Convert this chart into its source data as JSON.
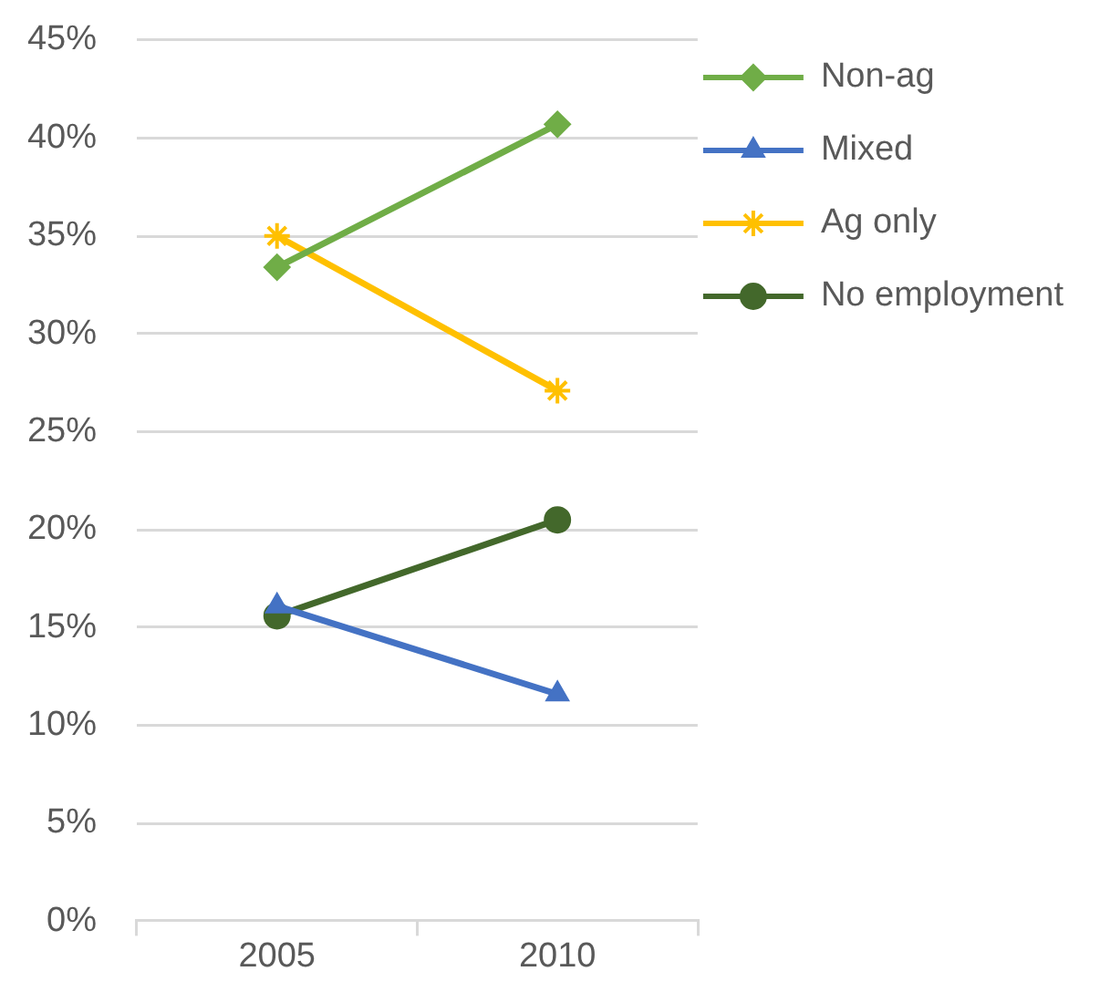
{
  "chart_data": {
    "type": "line",
    "categories": [
      "2005",
      "2010"
    ],
    "series": [
      {
        "name": "Non-ag",
        "color": "#70ad47",
        "marker": "diamond",
        "values": [
          33.4,
          40.7
        ]
      },
      {
        "name": "Mixed",
        "color": "#4472c4",
        "marker": "triangle",
        "values": [
          16.1,
          11.6
        ]
      },
      {
        "name": "Ag only",
        "color": "#ffc000",
        "marker": "cross",
        "values": [
          35.0,
          27.1
        ]
      },
      {
        "name": "No employment",
        "color": "#43682b",
        "marker": "circle",
        "values": [
          15.6,
          20.5
        ]
      }
    ],
    "ylim": [
      0,
      45
    ],
    "yticks": [
      {
        "value": 0,
        "label": "0%"
      },
      {
        "value": 5,
        "label": "5%"
      },
      {
        "value": 10,
        "label": "10%"
      },
      {
        "value": 15,
        "label": "15%"
      },
      {
        "value": 20,
        "label": "20%"
      },
      {
        "value": 25,
        "label": "25%"
      },
      {
        "value": 30,
        "label": "30%"
      },
      {
        "value": 35,
        "label": "35%"
      },
      {
        "value": 40,
        "label": "40%"
      },
      {
        "value": 45,
        "label": "45%"
      }
    ],
    "grid": "y",
    "legend": "top right",
    "line_style": "solid"
  }
}
